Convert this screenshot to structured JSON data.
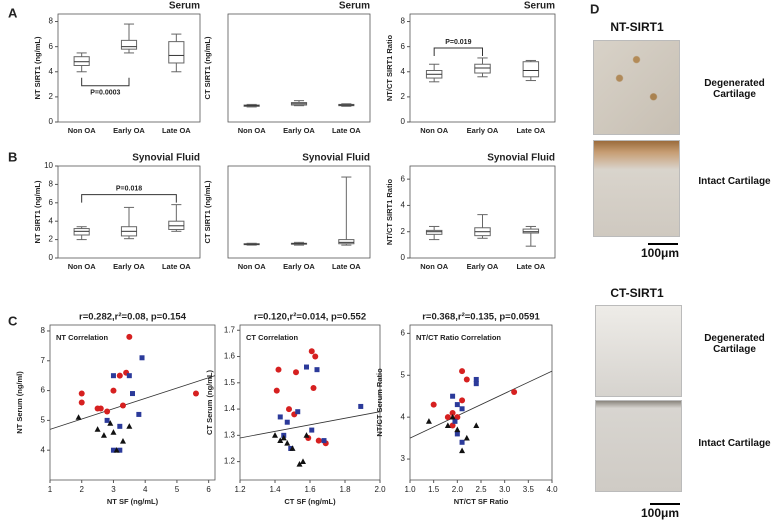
{
  "figure": {
    "panel_labels": [
      "A",
      "B",
      "C",
      "D"
    ]
  },
  "micrographs": {
    "groups": [
      {
        "title": "NT-SIRT1",
        "images": [
          "Degenerated Cartilage",
          "Intact Cartilage"
        ],
        "scale": "100μm"
      },
      {
        "title": "CT-SIRT1",
        "images": [
          "Degenerated Cartilage",
          "Intact Cartilage"
        ],
        "scale": "100μm"
      }
    ]
  },
  "chart_data": [
    {
      "type": "box",
      "title": "Serum",
      "ylabel": "NT SIRT1 (ng/mL)",
      "categories": [
        "Non OA",
        "Early OA",
        "Late OA"
      ],
      "boxes": [
        [
          4.0,
          4.5,
          4.8,
          5.2,
          5.5
        ],
        [
          5.5,
          5.8,
          6.0,
          6.5,
          7.8
        ],
        [
          4.0,
          4.7,
          5.3,
          6.4,
          7.0
        ]
      ],
      "ylim": [
        0,
        8.6
      ],
      "yticks": [
        0,
        2,
        4,
        6,
        8
      ],
      "annotation": {
        "text": "P=0.0003",
        "between": [
          "Non OA",
          "Early OA"
        ],
        "side": "below"
      }
    },
    {
      "type": "box",
      "title": "Serum",
      "ylabel": "CT SIRT1 (ng/mL)",
      "categories": [
        "Non OA",
        "Early OA",
        "Late OA"
      ],
      "boxes": [
        [
          1.2,
          1.25,
          1.3,
          1.35,
          1.4
        ],
        [
          1.3,
          1.35,
          1.45,
          1.55,
          1.7
        ],
        [
          1.25,
          1.3,
          1.35,
          1.4,
          1.45
        ]
      ],
      "ylim": [
        0,
        8.6
      ]
    },
    {
      "type": "box",
      "title": "Serum",
      "ylabel": "NT/CT SIRT1 Ratio",
      "categories": [
        "Non OA",
        "Early OA",
        "Late OA"
      ],
      "boxes": [
        [
          3.2,
          3.5,
          3.8,
          4.1,
          4.6
        ],
        [
          3.6,
          3.9,
          4.3,
          4.6,
          5.1
        ],
        [
          3.3,
          3.6,
          4.1,
          4.8,
          4.9
        ]
      ],
      "ylim": [
        0,
        8.6
      ],
      "yticks": [
        0,
        2,
        4,
        6,
        8
      ],
      "annotation": {
        "text": "P=0.019",
        "between": [
          "Non OA",
          "Early OA"
        ],
        "side": "above"
      }
    },
    {
      "type": "box",
      "title": "Synovial Fluid",
      "ylabel": "NT SIRT1 (ng/mL)",
      "categories": [
        "Non OA",
        "Early OA",
        "Late OA"
      ],
      "boxes": [
        [
          2.0,
          2.5,
          2.9,
          3.2,
          3.4
        ],
        [
          2.1,
          2.4,
          2.9,
          3.4,
          5.5
        ],
        [
          2.9,
          3.1,
          3.5,
          4.0,
          5.8
        ]
      ],
      "ylim": [
        0,
        10
      ],
      "yticks": [
        0,
        2,
        4,
        6,
        8,
        10
      ],
      "annotation": {
        "text": "P=0.018",
        "between": [
          "Non OA",
          "Late OA"
        ],
        "side": "above"
      }
    },
    {
      "type": "box",
      "title": "Synovial Fluid",
      "ylabel": "CT SIRT1 (ng/mL)",
      "categories": [
        "Non OA",
        "Early OA",
        "Late OA"
      ],
      "boxes": [
        [
          1.4,
          1.45,
          1.5,
          1.55,
          1.6
        ],
        [
          1.4,
          1.5,
          1.55,
          1.6,
          1.7
        ],
        [
          1.4,
          1.55,
          1.7,
          2.0,
          8.8
        ]
      ],
      "ylim": [
        0,
        10
      ]
    },
    {
      "type": "box",
      "title": "Synovial Fluid",
      "ylabel": "NT/CT SIRT1 Ratio",
      "categories": [
        "Non OA",
        "Early OA",
        "Late OA"
      ],
      "boxes": [
        [
          1.4,
          1.8,
          2.0,
          2.1,
          2.4
        ],
        [
          1.5,
          1.7,
          2.0,
          2.3,
          3.3
        ],
        [
          0.9,
          1.9,
          2.0,
          2.2,
          2.4
        ]
      ],
      "ylim": [
        0,
        7
      ],
      "yticks": [
        0,
        2,
        4,
        6
      ]
    },
    {
      "type": "scatter",
      "title": "r=0.282,r²=0.08, p=0.154",
      "label": "NT Correlation",
      "xlabel": "NT SF (ng/mL)",
      "ylabel": "NT Serum (ng/ml)",
      "xlim": [
        1,
        6.2
      ],
      "xticks": [
        1,
        2,
        3,
        4,
        5,
        6
      ],
      "ylim": [
        3,
        8.2
      ],
      "yticks": [
        4,
        5,
        6,
        7,
        8
      ],
      "series": [
        {
          "color": "#d62020",
          "marker": "circle",
          "x": [
            2,
            2,
            2.5,
            2.8,
            3,
            3.2,
            3.4,
            3.5,
            3.3,
            5.6,
            2.6
          ],
          "y": [
            5.9,
            5.6,
            5.4,
            5.3,
            6.0,
            6.5,
            6.6,
            7.8,
            5.5,
            5.9,
            5.4
          ]
        },
        {
          "color": "#2b3a9a",
          "marker": "square",
          "x": [
            3,
            3.2,
            3.5,
            3.6,
            3.9,
            3.8,
            3.2,
            3.0,
            2.8
          ],
          "y": [
            6.5,
            4.8,
            6.5,
            5.9,
            7.1,
            5.2,
            4.0,
            4.0,
            5.0
          ]
        },
        {
          "color": "#111111",
          "marker": "triangle",
          "x": [
            1.9,
            2.5,
            2.7,
            3.0,
            3.3,
            3.5,
            2.9,
            3.1
          ],
          "y": [
            5.1,
            4.7,
            4.5,
            4.6,
            4.3,
            4.8,
            4.9,
            4.0
          ]
        }
      ],
      "fit": {
        "x": [
          1,
          6.2
        ],
        "y": [
          4.7,
          6.5
        ]
      }
    },
    {
      "type": "scatter",
      "title": "r=0.120,r²=0.014, p=0.552",
      "label": "CT Correlation",
      "xlabel": "CT SF (ng/mL)",
      "ylabel": "CT Serum (ng/mL)",
      "xlim": [
        1.2,
        2.0
      ],
      "xticks": [
        1.2,
        1.4,
        1.6,
        1.8,
        {
          "value": 2,
          "label": "2.0"
        }
      ],
      "ylim": [
        1.13,
        1.72
      ],
      "yticks": [
        1.2,
        1.3,
        1.4,
        1.5,
        1.6,
        1.7
      ],
      "series": [
        {
          "color": "#d62020",
          "marker": "circle",
          "x": [
            1.41,
            1.42,
            1.48,
            1.51,
            1.52,
            1.59,
            1.61,
            1.63,
            1.62,
            1.65,
            1.69
          ],
          "y": [
            1.47,
            1.55,
            1.4,
            1.38,
            1.54,
            1.29,
            1.62,
            1.6,
            1.48,
            1.28,
            1.27
          ]
        },
        {
          "color": "#2b3a9a",
          "marker": "square",
          "x": [
            1.43,
            1.45,
            1.47,
            1.49,
            1.53,
            1.58,
            1.61,
            1.64,
            1.68,
            1.89
          ],
          "y": [
            1.37,
            1.3,
            1.35,
            1.25,
            1.39,
            1.56,
            1.32,
            1.55,
            1.28,
            1.41
          ]
        },
        {
          "color": "#111111",
          "marker": "triangle",
          "x": [
            1.4,
            1.43,
            1.45,
            1.47,
            1.5,
            1.54,
            1.56,
            1.58
          ],
          "y": [
            1.3,
            1.28,
            1.29,
            1.27,
            1.25,
            1.19,
            1.2,
            1.3
          ]
        }
      ],
      "fit": {
        "x": [
          1.2,
          2.0
        ],
        "y": [
          1.29,
          1.39
        ]
      }
    },
    {
      "type": "scatter",
      "title": "r=0.368,r²=0.135, p=0.0591",
      "label": "NT/CT Ratio Correlation",
      "xlabel": "NT/CT SF Ratio",
      "ylabel": "NT/CT Serum Ratio",
      "xlim": [
        1,
        4
      ],
      "xticks": [
        {
          "value": 1,
          "label": "1.0"
        },
        1.5,
        {
          "value": 2,
          "label": "2.0"
        },
        2.5,
        {
          "value": 3,
          "label": "3.0"
        },
        3.5,
        {
          "value": 4,
          "label": "4.0"
        }
      ],
      "ylim": [
        2.5,
        6.2
      ],
      "yticks": [
        3,
        4,
        5,
        6
      ],
      "series": [
        {
          "color": "#d62020",
          "marker": "circle",
          "x": [
            1.5,
            1.8,
            1.9,
            2.0,
            2.1,
            2.2,
            2.1,
            3.2,
            1.9
          ],
          "y": [
            4.3,
            4.0,
            3.8,
            4.0,
            5.1,
            4.9,
            4.4,
            4.6,
            4.1
          ]
        },
        {
          "color": "#2b3a9a",
          "marker": "square",
          "x": [
            1.9,
            2.0,
            2.1,
            2.4,
            2.4,
            2.0,
            2.1,
            1.95
          ],
          "y": [
            4.5,
            4.3,
            4.2,
            4.8,
            4.9,
            3.6,
            3.4,
            3.9
          ]
        },
        {
          "color": "#111111",
          "marker": "triangle",
          "x": [
            1.4,
            1.8,
            2.0,
            2.2,
            2.4,
            2.1,
            1.9
          ],
          "y": [
            3.9,
            3.8,
            3.7,
            3.5,
            3.8,
            3.2,
            4.0
          ]
        }
      ],
      "fit": {
        "x": [
          1,
          4
        ],
        "y": [
          3.5,
          5.1
        ]
      }
    }
  ]
}
